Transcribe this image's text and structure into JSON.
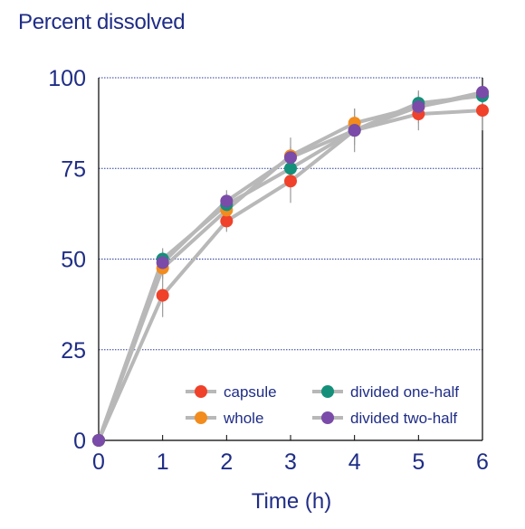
{
  "chart_data": {
    "type": "line",
    "title": "",
    "ylabel": "Percent dissolved",
    "xlabel": "Time (h)",
    "x": [
      0,
      1,
      2,
      3,
      4,
      5,
      6
    ],
    "xlim": [
      0,
      6
    ],
    "ylim": [
      0,
      100
    ],
    "x_ticks": [
      "0",
      "1",
      "2",
      "3",
      "4",
      "5",
      "6"
    ],
    "y_ticks": [
      "0",
      "25",
      "50",
      "75",
      "100"
    ],
    "grid": "horizontal dashed at 25, 50, 75, 100",
    "legend_position": "bottom-right",
    "series": [
      {
        "name": "capsule",
        "marker_color": "#f0412a",
        "values": [
          0,
          40,
          60.5,
          71.5,
          85.5,
          90,
          91
        ],
        "error": [
          0,
          6,
          3,
          6,
          0,
          4.5,
          5.5
        ]
      },
      {
        "name": "whole",
        "marker_color": "#f28c1e",
        "values": [
          0,
          47.5,
          63.5,
          78.5,
          87.5,
          92,
          95.5
        ],
        "error": [
          0,
          3,
          3,
          5,
          4,
          4.5,
          0
        ]
      },
      {
        "name": "divided one-half",
        "marker_color": "#14907a",
        "values": [
          0,
          50,
          65,
          75,
          85.5,
          93,
          95
        ],
        "error": [
          0,
          3,
          3,
          4,
          6,
          3,
          0
        ]
      },
      {
        "name": "divided two-half",
        "marker_color": "#7a4ba8",
        "values": [
          0,
          49,
          66,
          78,
          85.5,
          92,
          96
        ],
        "error": [
          0,
          3,
          3,
          3,
          4,
          3,
          0
        ]
      }
    ]
  },
  "colors": {
    "axis_text": "#1f2d86",
    "line": "#b8b8b8",
    "grid": "#2a3a9a",
    "error_bar": "#999999"
  }
}
